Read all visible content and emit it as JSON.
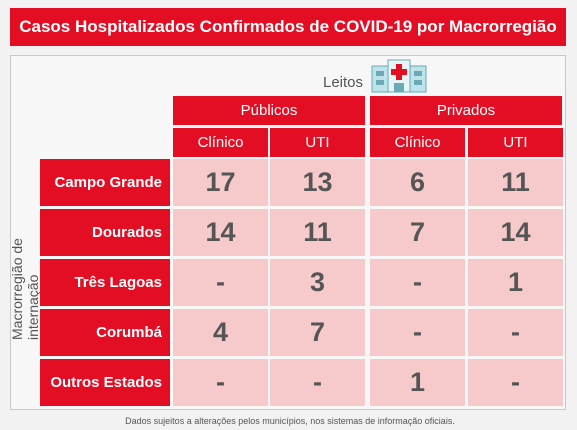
{
  "header": {
    "title": "Casos Hospitalizados Confirmados de COVID-19 por Macrorregião"
  },
  "table": {
    "beds_label": "Leitos",
    "row_axis_label": "Macrorregião de internação",
    "groups": [
      "Públicos",
      "Privados"
    ],
    "columns": [
      "Clínico",
      "UTI",
      "Clínico",
      "UTI"
    ],
    "rows": [
      {
        "name": "Campo Grande",
        "cells": [
          "17",
          "13",
          "6",
          "11"
        ]
      },
      {
        "name": "Dourados",
        "cells": [
          "14",
          "11",
          "7",
          "14"
        ]
      },
      {
        "name": "Três Lagoas",
        "cells": [
          "-",
          "3",
          "-",
          "1"
        ]
      },
      {
        "name": "Corumbá",
        "cells": [
          "4",
          "7",
          "-",
          "-"
        ]
      },
      {
        "name": "Outros Estados",
        "cells": [
          "-",
          "-",
          "1",
          "-"
        ]
      }
    ]
  },
  "footer": {
    "note": "Dados sujeitos a alterações pelos municípios, nos sistemas de informação oficiais."
  }
}
